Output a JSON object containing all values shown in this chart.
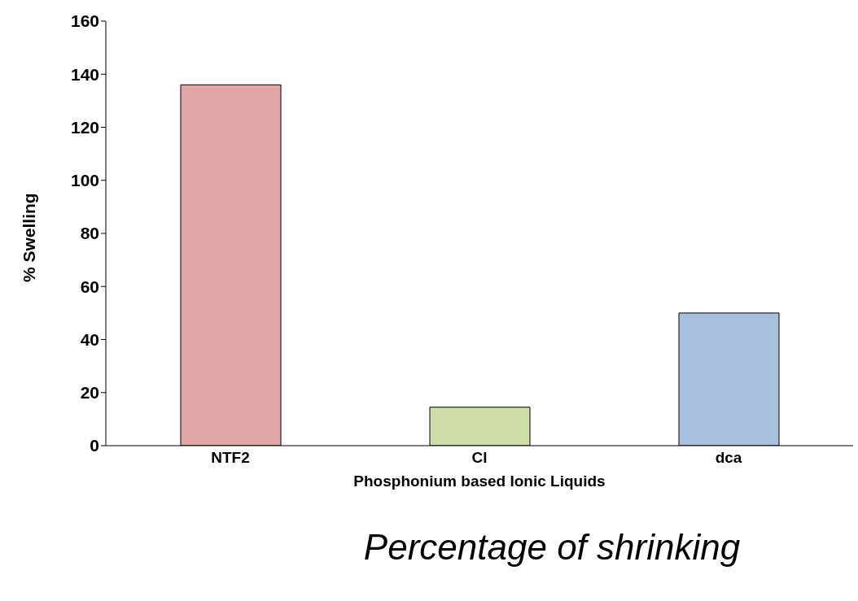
{
  "chart_data": {
    "type": "bar",
    "title": "Percentage of shrinking",
    "xlabel": "Phosphonium based Ionic Liquids",
    "ylabel": "% Swelling",
    "categories": [
      "NTF2",
      "Cl",
      "dca"
    ],
    "values": [
      136,
      14.5,
      50
    ],
    "colors": [
      "#e0a7a6",
      "#cfdda9",
      "#a7c0de"
    ],
    "ylim": [
      0,
      160
    ],
    "yticks": [
      0,
      20,
      40,
      60,
      80,
      100,
      120,
      140,
      160
    ],
    "grid": false
  }
}
